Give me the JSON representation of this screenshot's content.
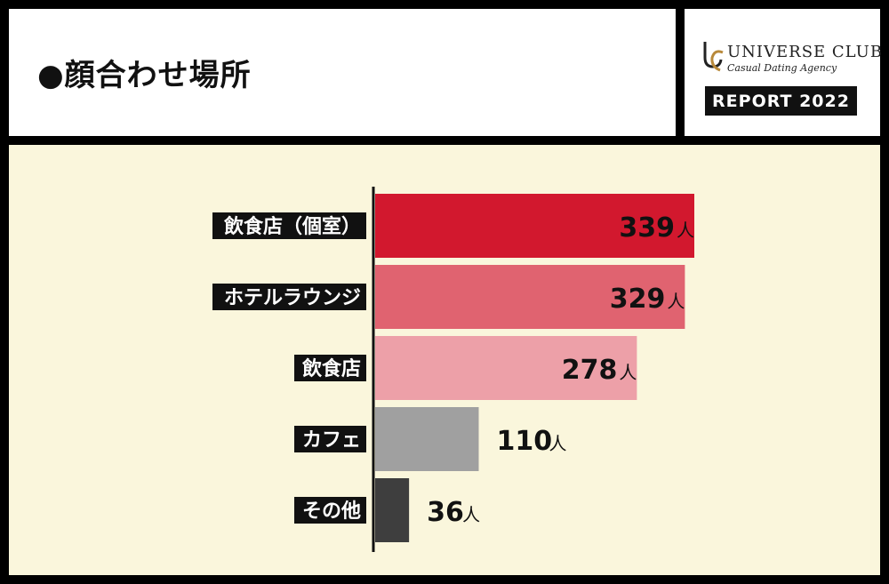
{
  "header": {
    "title": "●顔合わせ場所"
  },
  "brand": {
    "logo_icon": "uc-monogram-icon",
    "name": "UNIVERSE CLUB",
    "tagline": "Casual Dating Agency",
    "report_label": "REPORT 2022"
  },
  "chart_data": {
    "type": "bar",
    "orientation": "horizontal",
    "title": "",
    "xlabel": "",
    "ylabel": "",
    "unit": "人",
    "xlim": [
      0,
      380
    ],
    "categories": [
      "飲食店（個室）",
      "ホテルラウンジ",
      "飲食店",
      "カフェ",
      "その他"
    ],
    "values": [
      339,
      329,
      278,
      110,
      36
    ],
    "colors": [
      "#d2182e",
      "#e06370",
      "#eda0a8",
      "#a0a0a0",
      "#3e3e3e"
    ],
    "grid": false,
    "legend": "none"
  }
}
